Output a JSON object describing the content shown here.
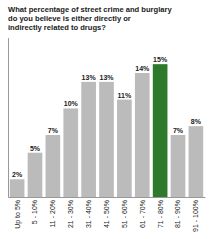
{
  "chart_data": {
    "type": "bar",
    "title": "What percentage of street crime and burglary\ndo you believe is either directly or\nindirectly related to drugs?",
    "categories": [
      "Up to 5%",
      "5 - 10%",
      "11 - 20%",
      "21 - 30%",
      "31 - 40%",
      "41 - 50%",
      "51 - 60%",
      "61 - 70%",
      "71 - 80%",
      "81 - 90%",
      "91 - 100%"
    ],
    "values": [
      2,
      5,
      7,
      10,
      13,
      13,
      11,
      14,
      15,
      7,
      8
    ],
    "value_labels": [
      "2%",
      "5%",
      "7%",
      "10%",
      "13%",
      "13%",
      "11%",
      "14%",
      "15%",
      "7%",
      "8%"
    ],
    "colors": [
      "#bbbbbb",
      "#bbbbbb",
      "#bbbbbb",
      "#bbbbbb",
      "#bbbbbb",
      "#bbbbbb",
      "#bbbbbb",
      "#bbbbbb",
      "#2d7a2d",
      "#bbbbbb",
      "#bbbbbb"
    ],
    "ylim": [
      0,
      18
    ],
    "data_labels": true,
    "tick_labels": "x",
    "grid": false
  }
}
